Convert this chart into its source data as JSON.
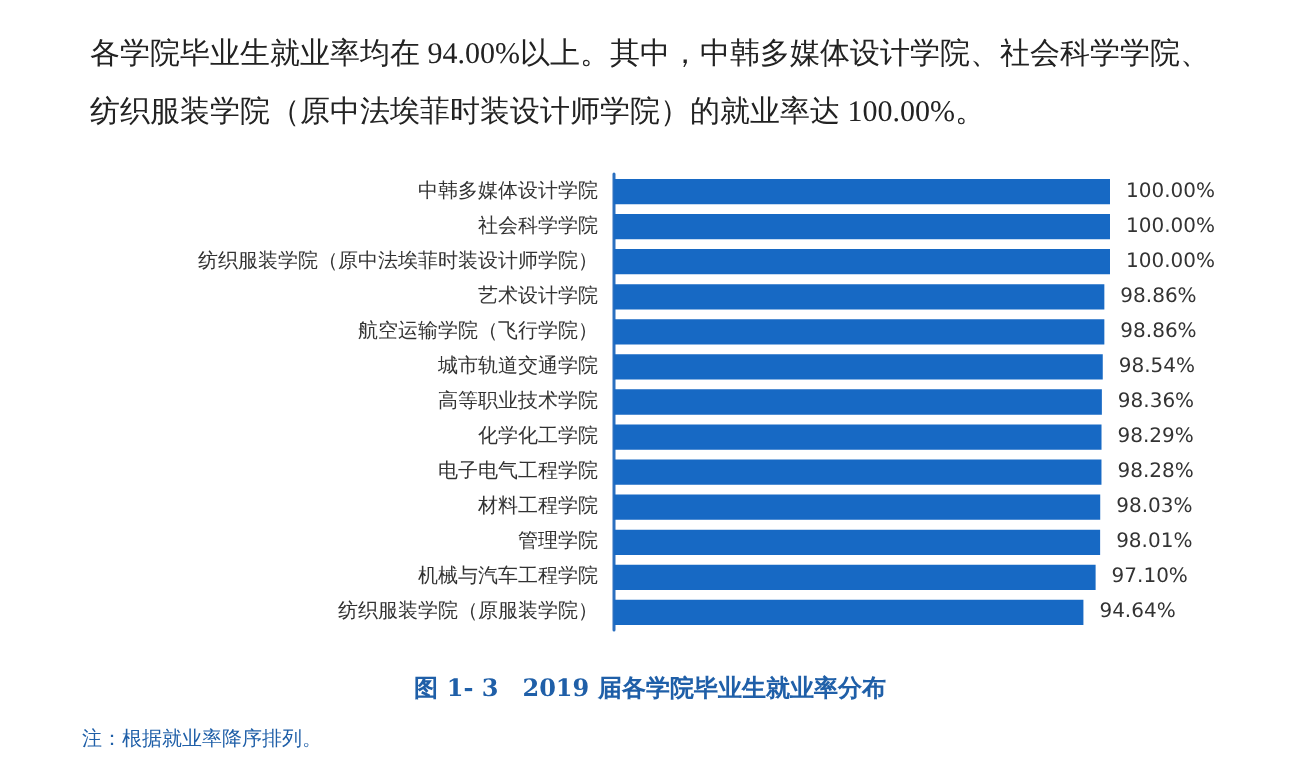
{
  "chart_data": {
    "type": "bar",
    "orientation": "horizontal",
    "title": "图 1- 3　2019 届各学院毕业生就业率分布",
    "annotations": [
      "各学院毕业生就业率均在 94.00%以上。其中，中韩多媒体设计学院、社会科学学院、纺织服装学院（原中法埃菲时装设计师学院）的就业率达 100.00%。",
      "注：根据就业率降序排列。"
    ],
    "categories": [
      "中韩多媒体设计学院",
      "社会科学学院",
      "纺织服装学院（原中法埃菲时装设计师学院）",
      "艺术设计学院",
      "航空运输学院（飞行学院）",
      "城市轨道交通学院",
      "高等职业技术学院",
      "化学化工学院",
      "电子电气工程学院",
      "材料工程学院",
      "管理学院",
      "机械与汽车工程学院",
      "纺织服装学院（原服装学院）"
    ],
    "values": [
      100.0,
      100.0,
      100.0,
      98.86,
      98.86,
      98.54,
      98.36,
      98.29,
      98.28,
      98.03,
      98.01,
      97.1,
      94.64
    ],
    "value_labels": [
      "100.00%",
      "100.00%",
      "100.00%",
      "98.86%",
      "98.86%",
      "98.54%",
      "98.36%",
      "98.29%",
      "98.28%",
      "98.03%",
      "98.01%",
      "97.10%",
      "94.64%"
    ],
    "color": "#1769c4"
  }
}
